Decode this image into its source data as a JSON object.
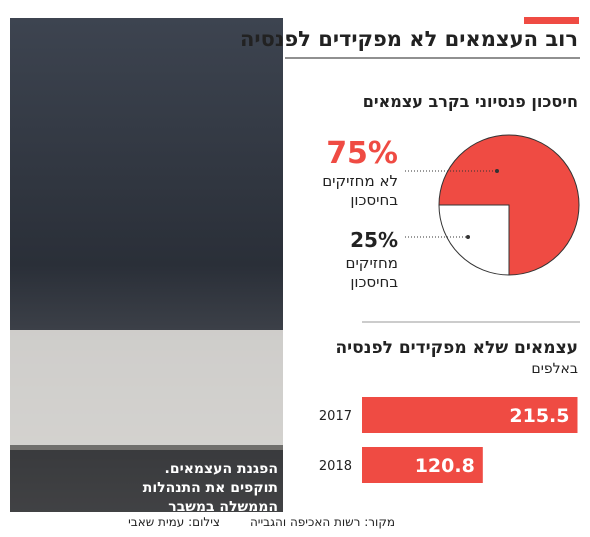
{
  "header": {
    "title": "רוב העצמאים לא מפקידים לפנסיה"
  },
  "photo": {
    "caption": "הפגנת העצמאים. תוקפים את התנהלות הממשלה במשבר הקורונה",
    "credit": "צילום: עמית שאבי"
  },
  "source": "מקור: רשות האכיפה והגבייה",
  "chart_data": [
    {
      "type": "pie",
      "title": "חיסכון פנסיוני בקרב עצמאים",
      "categories": [
        "לא מחזיקים בחיסכון",
        "מחזיקים בחיסכון"
      ],
      "values": [
        75,
        25
      ],
      "value_labels": [
        "75%",
        "25%"
      ],
      "colors": [
        "#ef4b43",
        "#ffffff"
      ],
      "label_colors": [
        "#ef4b43",
        "#222222"
      ]
    },
    {
      "type": "bar",
      "title": "עצמאים שלא מפקידים לפנסיה",
      "subtitle": "באלפים",
      "categories": [
        "2017",
        "2018"
      ],
      "values": [
        215.5,
        120.8
      ],
      "color": "#ef4b43"
    }
  ]
}
